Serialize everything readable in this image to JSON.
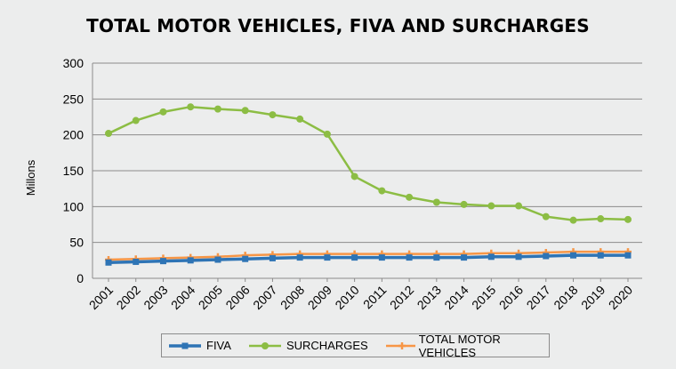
{
  "chart_data": {
    "type": "line",
    "title": "TOTAL MOTOR VEHICLES, FIVA AND SURCHARGES",
    "ylabel": "Millons",
    "xlabel": "",
    "ylim": [
      0,
      300
    ],
    "yticks": [
      0,
      50,
      100,
      150,
      200,
      250,
      300
    ],
    "grid": true,
    "legend": "bottom",
    "categories": [
      "2001",
      "2002",
      "2003",
      "2004",
      "2005",
      "2006",
      "2007",
      "2008",
      "2009",
      "2010",
      "2011",
      "2012",
      "2013",
      "2014",
      "2015",
      "2016",
      "2017",
      "2018",
      "2019",
      "2020"
    ],
    "series": [
      {
        "name": "FIVA",
        "color": "#2e74b5",
        "marker": "square",
        "values": [
          22,
          23,
          24,
          25,
          26,
          27,
          28,
          29,
          29,
          29,
          29,
          29,
          29,
          29,
          30,
          30,
          31,
          32,
          32,
          32
        ]
      },
      {
        "name": "SURCHARGES",
        "color": "#8cbd44",
        "marker": "circle",
        "values": [
          202,
          220,
          232,
          239,
          236,
          234,
          228,
          222,
          201,
          142,
          122,
          113,
          106,
          103,
          101,
          101,
          86,
          81,
          83,
          82
        ]
      },
      {
        "name": "TOTAL MOTOR VEHICLES",
        "color": "#f79646",
        "marker": "cross",
        "values": [
          26,
          27,
          28,
          29,
          30,
          32,
          33,
          34,
          34,
          34,
          34,
          34,
          34,
          34,
          35,
          35,
          36,
          37,
          37,
          37
        ]
      }
    ]
  }
}
